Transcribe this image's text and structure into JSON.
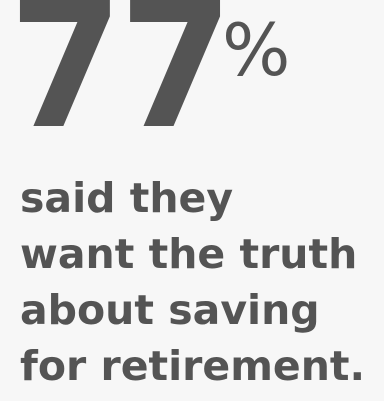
{
  "headline": {
    "value": "77",
    "unit": "%"
  },
  "caption": {
    "lines": [
      "said they",
      "want the truth",
      "about saving",
      "for retirement."
    ]
  }
}
